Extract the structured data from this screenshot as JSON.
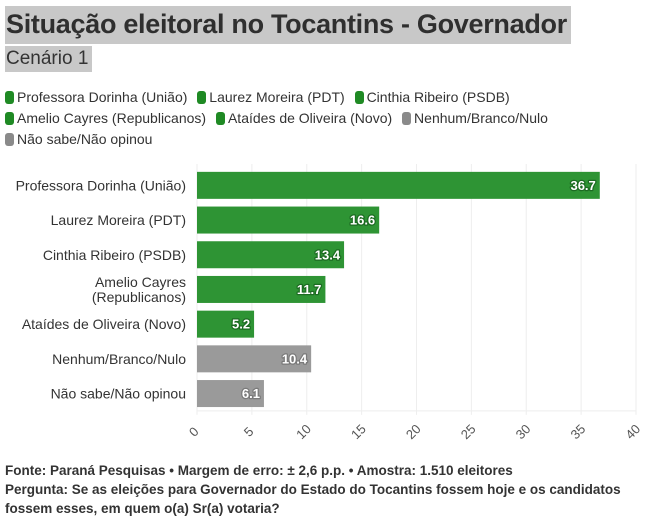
{
  "header": {
    "title": "Situação eleitoral no Tocantins - Governador",
    "subtitle": "Cenário 1"
  },
  "colors": {
    "candidate": "#2e9434",
    "candidate_label_stroke": "#1c6b22",
    "other": "#9a9a9a",
    "other_label_stroke": "#7a7a7a",
    "grid": "#eeeeee"
  },
  "legend": [
    {
      "label": "Professora Dorinha (União)",
      "color": "#1f8a24"
    },
    {
      "label": "Laurez Moreira (PDT)",
      "color": "#1f8a24"
    },
    {
      "label": "Cinthia Ribeiro (PSDB)",
      "color": "#1f8a24"
    },
    {
      "label": "Amelio Cayres (Republicanos)",
      "color": "#1f8a24"
    },
    {
      "label": "Ataídes de Oliveira (Novo)",
      "color": "#1f8a24"
    },
    {
      "label": "Nenhum/Branco/Nulo",
      "color": "#8a8a8a"
    },
    {
      "label": "Não sabe/Não opinou",
      "color": "#8a8a8a"
    }
  ],
  "chart_data": {
    "type": "bar",
    "orientation": "horizontal",
    "title": "Situação eleitoral no Tocantins - Governador",
    "subtitle": "Cenário 1",
    "xlabel": "",
    "ylabel": "",
    "categories": [
      [
        "Professora Dorinha (União)"
      ],
      [
        "Laurez Moreira (PDT)"
      ],
      [
        "Cinthia Ribeiro (PSDB)"
      ],
      [
        "Amelio Cayres",
        "(Republicanos)"
      ],
      [
        "Ataídes de Oliveira (Novo)"
      ],
      [
        "Nenhum/Branco/Nulo"
      ],
      [
        "Não sabe/Não opinou"
      ]
    ],
    "values": [
      36.7,
      16.6,
      13.4,
      11.7,
      5.2,
      10.4,
      6.1
    ],
    "value_labels": [
      "36.7",
      "16.6",
      "13.4",
      "11.7",
      "5.2",
      "10.4",
      "6.1"
    ],
    "groups": [
      "candidate",
      "candidate",
      "candidate",
      "candidate",
      "candidate",
      "other",
      "other"
    ],
    "xlim": [
      0,
      40
    ],
    "xticks": [
      0,
      5,
      10,
      15,
      20,
      25,
      30,
      35,
      40
    ],
    "xtick_labels": [
      "0",
      "5",
      "10",
      "15",
      "20",
      "25",
      "30",
      "35",
      "40"
    ],
    "grid": true,
    "legend_position": "top"
  },
  "footer": {
    "source": "Fonte: Paraná Pesquisas • Margem de erro: ± 2,6 p.p. • Amostra: 1.510 eleitores",
    "question": "Pergunta: Se as eleições para Governador do Estado do Tocantins fossem hoje e os candidatos fossem esses, em quem o(a) Sr(a) votaria?"
  }
}
